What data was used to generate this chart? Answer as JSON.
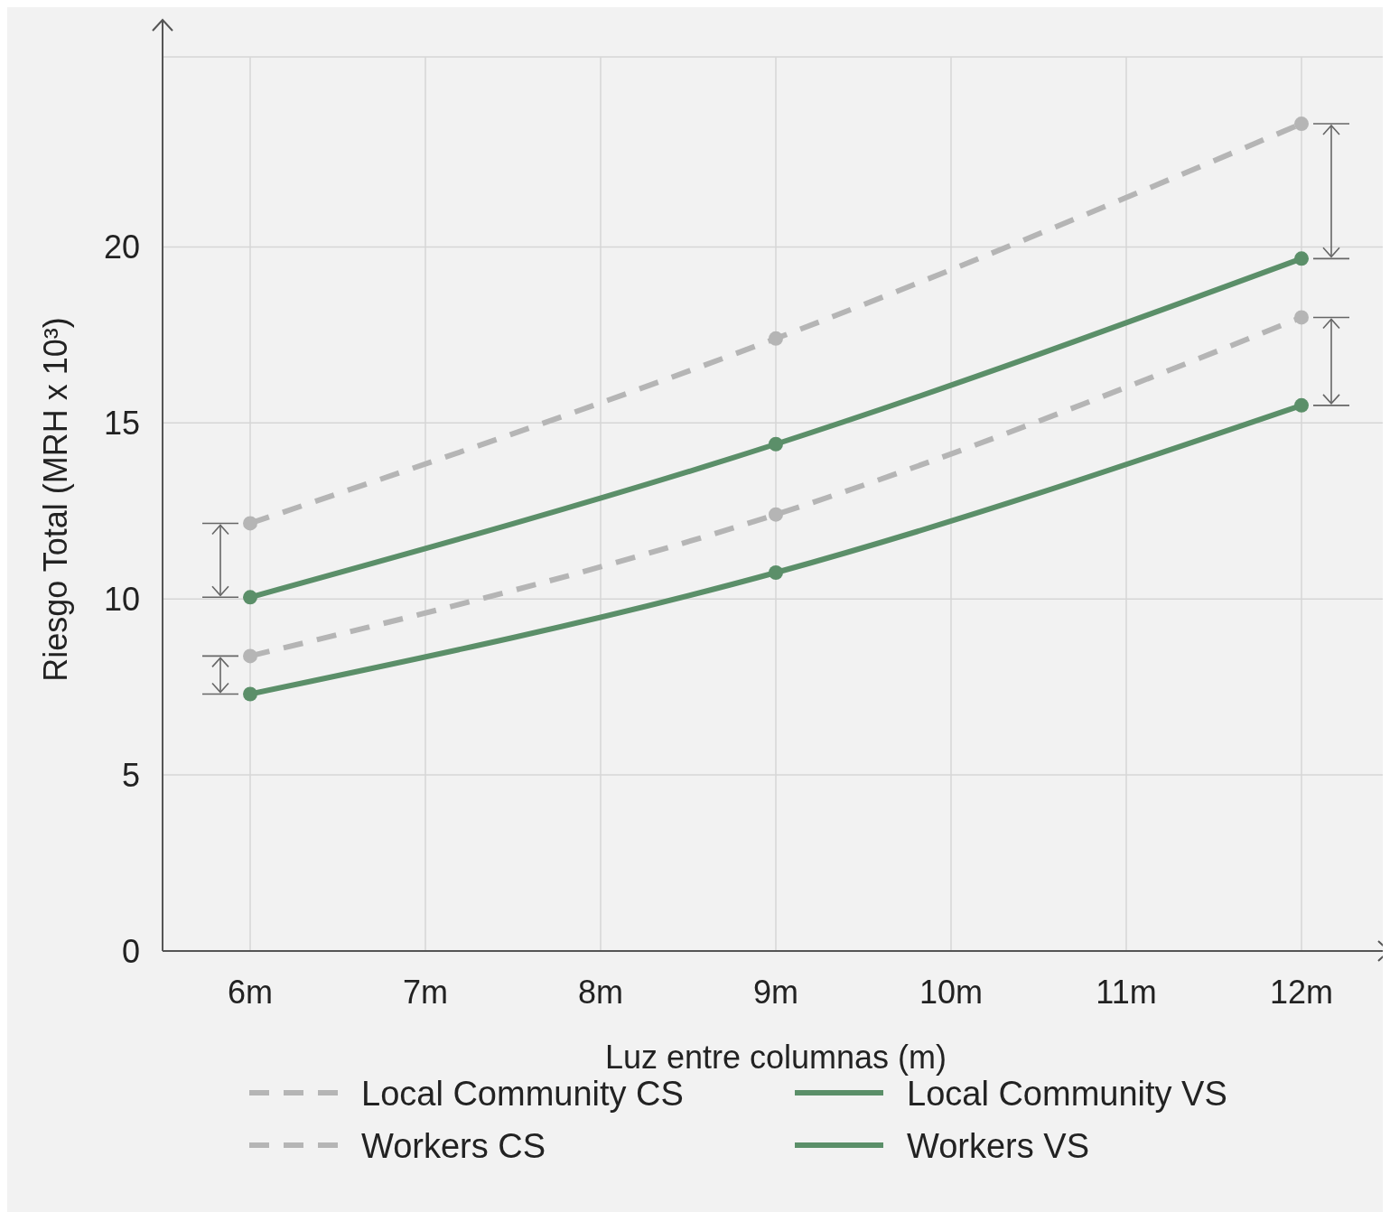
{
  "chart_data": {
    "type": "line",
    "xlabel": "Luz entre columnas (m)",
    "ylabel": "Riesgo Total (MRH x 10³)",
    "x": [
      6,
      9,
      12
    ],
    "xlim": [
      5.5,
      12.5
    ],
    "xticks": [
      {
        "value": 6,
        "label": "6m"
      },
      {
        "value": 7,
        "label": "7m"
      },
      {
        "value": 8,
        "label": "8m"
      },
      {
        "value": 9,
        "label": "9m"
      },
      {
        "value": 10,
        "label": "10m"
      },
      {
        "value": 11,
        "label": "11m"
      },
      {
        "value": 12,
        "label": "12m"
      }
    ],
    "ylim": [
      0,
      25.4
    ],
    "yticks": [
      0,
      5,
      10,
      15,
      20
    ],
    "grid": true,
    "legend": "bottom",
    "marker": "circle",
    "series": [
      {
        "name": "Local Community CS",
        "color": "#b5b5b5",
        "line_style": "dashed",
        "values": [
          12.15,
          17.4,
          23.5
        ]
      },
      {
        "name": "Local Community VS",
        "color": "#5b8f69",
        "line_style": "solid",
        "values": [
          10.05,
          14.4,
          19.67
        ]
      },
      {
        "name": "Workers CS",
        "color": "#b5b5b5",
        "line_style": "dashed",
        "values": [
          8.38,
          12.4,
          18.0
        ]
      },
      {
        "name": "Workers VS",
        "color": "#5b8f69",
        "line_style": "solid",
        "values": [
          7.3,
          10.75,
          15.5
        ]
      }
    ]
  }
}
